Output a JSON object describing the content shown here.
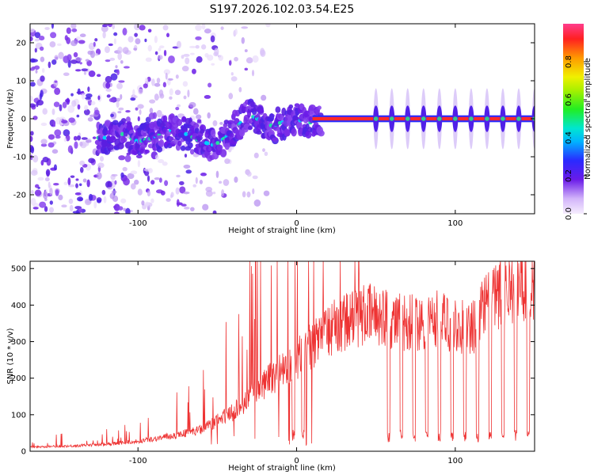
{
  "title": "S197.2026.102.03.54.E25",
  "chart_data": [
    {
      "type": "heatmap",
      "name": "spectrogram",
      "xlabel": "Height of straight line (km)",
      "ylabel": "Frequency (Hz)",
      "xlim": [
        -168,
        150
      ],
      "ylim": [
        -25,
        25
      ],
      "xticks": [
        -100,
        0,
        100
      ],
      "yticks": [
        -20,
        -10,
        0,
        10,
        20
      ],
      "colorbar": {
        "label": "Normalized spectral amplitude",
        "range": [
          0,
          1
        ],
        "ticks": [
          0.0,
          0.2,
          0.4,
          0.6,
          0.8
        ]
      },
      "ridge": {
        "x": [
          -120,
          -110,
          -100,
          -90,
          -80,
          -70,
          -60,
          -52,
          -45,
          -40,
          -35,
          -30,
          -25,
          -20,
          -15,
          -10,
          -5,
          0,
          5,
          10,
          15,
          50,
          150
        ],
        "y": [
          -5,
          -4,
          -6,
          -5,
          -3,
          -4,
          -6,
          -7,
          -5,
          -3,
          -1,
          1,
          0,
          -1,
          -2,
          -1,
          -1,
          0,
          -1,
          -1,
          0,
          0,
          0
        ]
      },
      "bursts_x": [
        50,
        60,
        70,
        80,
        90,
        100,
        110,
        120,
        130,
        140,
        150
      ]
    },
    {
      "type": "line",
      "name": "snr",
      "xlabel": "Height of straight line (km)",
      "ylabel": "SNR (10 * v/v)",
      "xlim": [
        -168,
        150
      ],
      "ylim": [
        0,
        520
      ],
      "xticks": [
        -100,
        0,
        100
      ],
      "yticks": [
        0,
        100,
        200,
        300,
        400,
        500
      ],
      "color": "#ee3333",
      "envelope": {
        "x": [
          -168,
          -140,
          -120,
          -100,
          -80,
          -60,
          -40,
          -20,
          0,
          20,
          40,
          50,
          60,
          70,
          80,
          90,
          100,
          110,
          118,
          130,
          140,
          150
        ],
        "y": [
          12,
          15,
          20,
          28,
          42,
          60,
          110,
          190,
          260,
          340,
          380,
          385,
          370,
          360,
          368,
          372,
          352,
          340,
          400,
          450,
          470,
          475
        ]
      },
      "dropouts_x": [
        -2,
        4,
        58,
        66,
        74,
        82,
        90,
        98,
        106,
        114,
        122,
        130,
        138,
        146
      ]
    }
  ]
}
